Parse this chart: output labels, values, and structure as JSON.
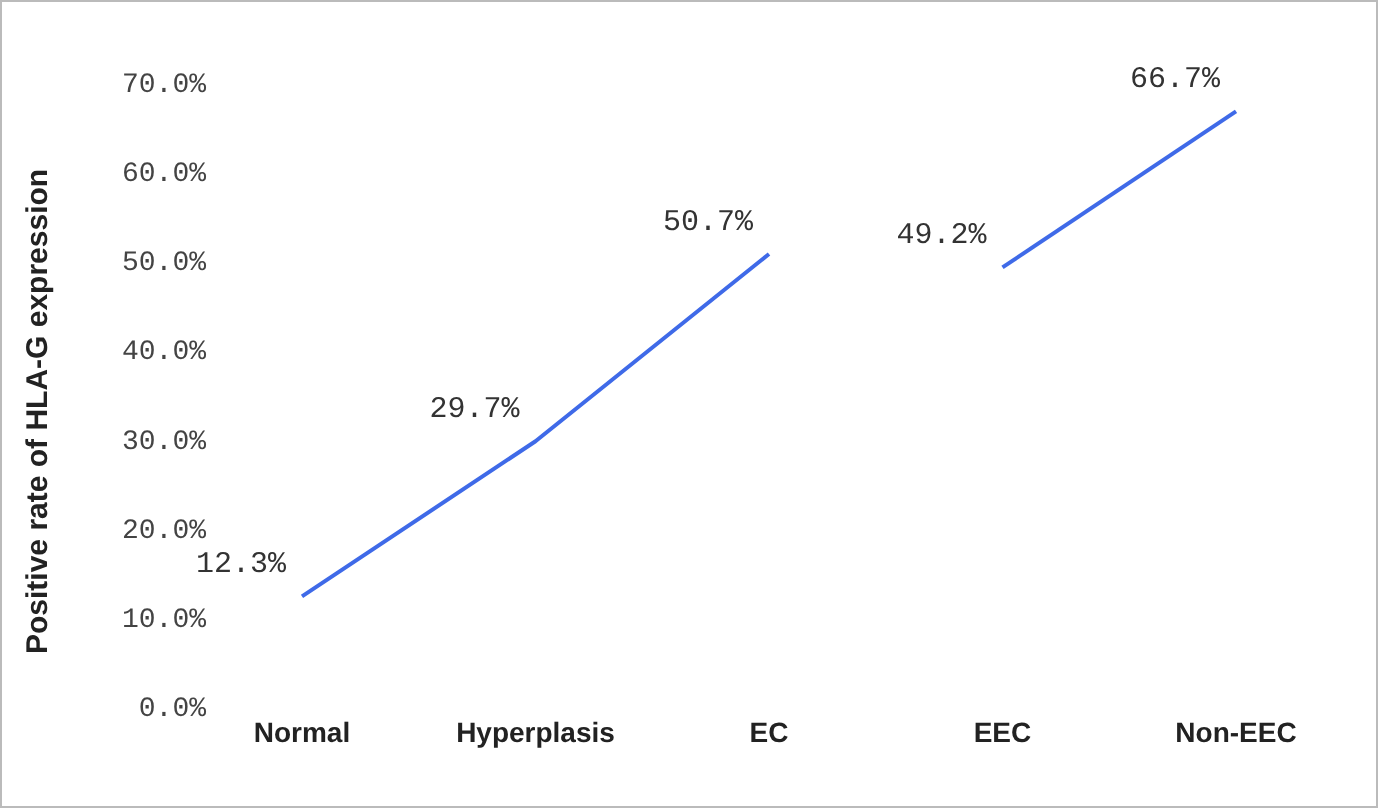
{
  "chart_data": {
    "type": "line",
    "ylabel": "Positive rate of HLA-G expression",
    "categories": [
      "Normal",
      "Hyperplasis",
      "EC",
      "EEC",
      "Non-EEC"
    ],
    "series": [
      {
        "color": "#3f6ae8",
        "values": [
          12.3,
          29.7,
          50.7,
          null,
          null
        ],
        "value_labels": [
          "12.3%",
          "29.7%",
          "50.7%",
          null,
          null
        ]
      },
      {
        "color": "#3f6ae8",
        "values": [
          null,
          null,
          null,
          49.2,
          66.7
        ],
        "value_labels": [
          null,
          null,
          null,
          "49.2%",
          "66.7%"
        ]
      }
    ],
    "ylim": [
      0,
      70
    ],
    "yticks": [
      {
        "value": 0,
        "label": "0.0%"
      },
      {
        "value": 10,
        "label": "10.0%"
      },
      {
        "value": 20,
        "label": "20.0%"
      },
      {
        "value": 30,
        "label": "30.0%"
      },
      {
        "value": 40,
        "label": "40.0%"
      },
      {
        "value": 50,
        "label": "50.0%"
      },
      {
        "value": 60,
        "label": "60.0%"
      },
      {
        "value": 70,
        "label": "70.0%"
      }
    ],
    "marker": "none",
    "line_style": "solid"
  }
}
